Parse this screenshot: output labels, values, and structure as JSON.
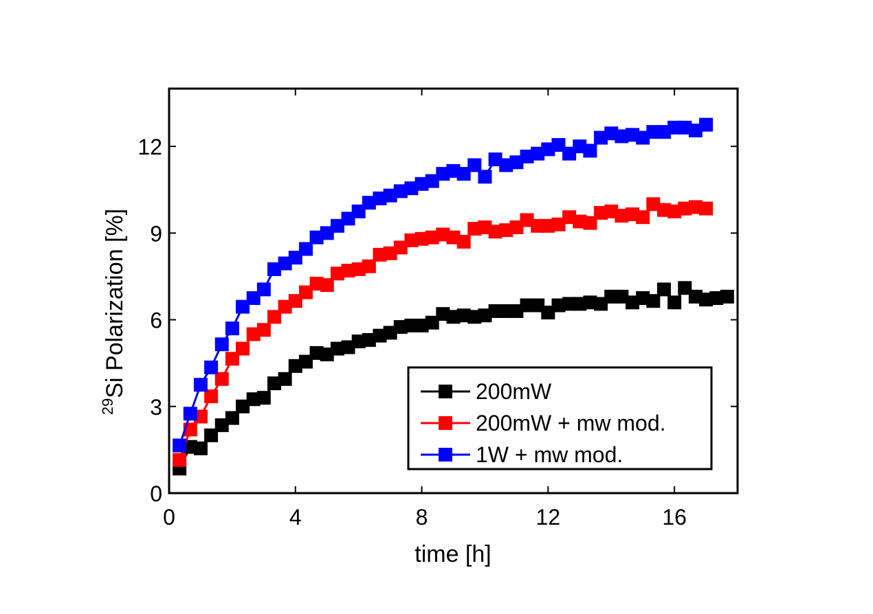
{
  "chart_data": {
    "type": "line",
    "title": "",
    "xlabel": "time [h]",
    "ylabel_sup": "29",
    "ylabel": "Si Polarization [%]",
    "xlim": [
      0,
      18
    ],
    "ylim": [
      0,
      14
    ],
    "xticks": [
      0,
      4,
      8,
      12,
      16
    ],
    "yticks": [
      0,
      3,
      6,
      9,
      12
    ],
    "grid": false,
    "legend_position": "bottom-right",
    "series": [
      {
        "name": "200mW",
        "color": "#000000",
        "x": [
          0.33,
          0.67,
          1.0,
          1.33,
          1.67,
          2.0,
          2.33,
          2.67,
          3.0,
          3.33,
          3.67,
          4.0,
          4.33,
          4.67,
          5.0,
          5.33,
          5.67,
          6.0,
          6.33,
          6.67,
          7.0,
          7.33,
          7.67,
          8.0,
          8.33,
          8.67,
          9.0,
          9.33,
          9.67,
          10.0,
          10.33,
          10.67,
          11.0,
          11.33,
          11.67,
          12.0,
          12.33,
          12.67,
          13.0,
          13.33,
          13.67,
          14.0,
          14.33,
          14.67,
          15.0,
          15.33,
          15.67,
          16.0,
          16.33,
          16.67,
          17.0,
          17.33,
          17.67
        ],
        "values": [
          0.85,
          1.6,
          1.55,
          2.0,
          2.35,
          2.6,
          3.0,
          3.25,
          3.3,
          3.8,
          3.95,
          4.4,
          4.55,
          4.85,
          4.8,
          5.0,
          5.05,
          5.25,
          5.3,
          5.45,
          5.55,
          5.75,
          5.8,
          5.8,
          5.9,
          6.2,
          6.1,
          6.15,
          6.1,
          6.15,
          6.3,
          6.3,
          6.3,
          6.5,
          6.5,
          6.25,
          6.5,
          6.55,
          6.55,
          6.6,
          6.55,
          6.8,
          6.8,
          6.6,
          6.75,
          6.65,
          7.05,
          6.6,
          7.1,
          6.8,
          6.7,
          6.75,
          6.8
        ]
      },
      {
        "name": "200mW + mw mod.",
        "color": "#ff0000",
        "x": [
          0.33,
          0.67,
          1.0,
          1.33,
          1.67,
          2.0,
          2.33,
          2.67,
          3.0,
          3.33,
          3.67,
          4.0,
          4.33,
          4.67,
          5.0,
          5.33,
          5.67,
          6.0,
          6.33,
          6.67,
          7.0,
          7.33,
          7.67,
          8.0,
          8.33,
          8.67,
          9.0,
          9.33,
          9.67,
          10.0,
          10.33,
          10.67,
          11.0,
          11.33,
          11.67,
          12.0,
          12.33,
          12.67,
          13.0,
          13.33,
          13.67,
          14.0,
          14.33,
          14.67,
          15.0,
          15.33,
          15.67,
          16.0,
          16.33,
          16.67,
          17.0
        ],
        "values": [
          1.15,
          2.2,
          2.65,
          3.35,
          3.95,
          4.65,
          5.0,
          5.5,
          5.65,
          6.1,
          6.45,
          6.65,
          6.95,
          7.25,
          7.2,
          7.6,
          7.7,
          7.75,
          7.85,
          8.25,
          8.3,
          8.5,
          8.75,
          8.8,
          8.85,
          8.95,
          8.85,
          8.7,
          9.15,
          9.2,
          9.05,
          9.1,
          9.2,
          9.45,
          9.25,
          9.25,
          9.3,
          9.55,
          9.4,
          9.35,
          9.7,
          9.75,
          9.6,
          9.65,
          9.55,
          10.0,
          9.8,
          9.75,
          9.85,
          9.9,
          9.85
        ]
      },
      {
        "name": "1W + mw mod.",
        "color": "#0000ff",
        "x": [
          0.33,
          0.67,
          1.0,
          1.33,
          1.67,
          2.0,
          2.33,
          2.67,
          3.0,
          3.33,
          3.67,
          4.0,
          4.33,
          4.67,
          5.0,
          5.33,
          5.67,
          6.0,
          6.33,
          6.67,
          7.0,
          7.33,
          7.67,
          8.0,
          8.33,
          8.67,
          9.0,
          9.33,
          9.67,
          10.0,
          10.33,
          10.67,
          11.0,
          11.33,
          11.67,
          12.0,
          12.33,
          12.67,
          13.0,
          13.33,
          13.67,
          14.0,
          14.33,
          14.67,
          15.0,
          15.33,
          15.67,
          16.0,
          16.33,
          16.67,
          17.0
        ],
        "values": [
          1.65,
          2.75,
          3.75,
          4.35,
          5.15,
          5.7,
          6.45,
          6.75,
          7.05,
          7.75,
          7.95,
          8.15,
          8.45,
          8.85,
          9.0,
          9.25,
          9.5,
          9.75,
          10.05,
          10.2,
          10.3,
          10.45,
          10.55,
          10.7,
          10.8,
          11.05,
          11.15,
          11.05,
          11.35,
          10.95,
          11.55,
          11.35,
          11.45,
          11.65,
          11.75,
          11.9,
          12.05,
          11.75,
          12.0,
          11.85,
          12.3,
          12.45,
          12.35,
          12.4,
          12.3,
          12.5,
          12.5,
          12.65,
          12.65,
          12.55,
          12.75
        ]
      }
    ]
  }
}
